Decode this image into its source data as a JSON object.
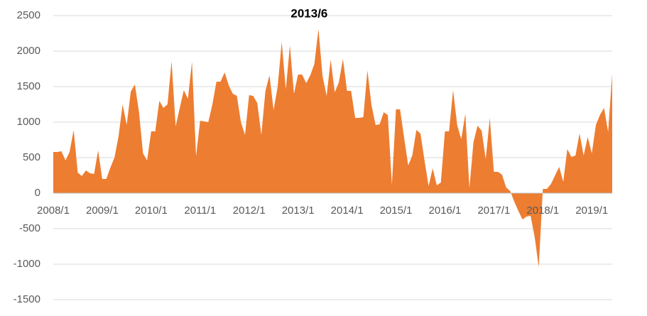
{
  "chart_data": {
    "type": "area",
    "annotation": "2013/6",
    "color": "#ED7D31",
    "grid": true,
    "ylim": [
      -1500,
      2500
    ],
    "yticks": [
      -1500,
      -1000,
      -500,
      0,
      500,
      1000,
      1500,
      2000,
      2500
    ],
    "categories": [
      "2008/1",
      null,
      null,
      null,
      null,
      null,
      null,
      null,
      null,
      null,
      null,
      null,
      "2009/1",
      null,
      null,
      null,
      null,
      null,
      null,
      null,
      null,
      null,
      null,
      null,
      "2010/1",
      null,
      null,
      null,
      null,
      null,
      null,
      null,
      null,
      null,
      null,
      null,
      "2011/1",
      null,
      null,
      null,
      null,
      null,
      null,
      null,
      null,
      null,
      null,
      null,
      "2012/1",
      null,
      null,
      null,
      null,
      null,
      null,
      null,
      null,
      null,
      null,
      null,
      "2013/1",
      null,
      null,
      null,
      null,
      null,
      null,
      null,
      null,
      null,
      null,
      null,
      "2014/1",
      null,
      null,
      null,
      null,
      null,
      null,
      null,
      null,
      null,
      null,
      null,
      "2015/1",
      null,
      null,
      null,
      null,
      null,
      null,
      null,
      null,
      null,
      null,
      null,
      "2016/1",
      null,
      null,
      null,
      null,
      null,
      null,
      null,
      null,
      null,
      null,
      null,
      "2017/1",
      null,
      null,
      null,
      null,
      null,
      null,
      null,
      null,
      null,
      null,
      null,
      "2018/1",
      null,
      null,
      null,
      null,
      null,
      null,
      null,
      null,
      null,
      null,
      null,
      "2019/1",
      null,
      null,
      null,
      null,
      null
    ],
    "values": [
      580,
      580,
      590,
      460,
      580,
      890,
      290,
      240,
      320,
      280,
      270,
      600,
      200,
      200,
      360,
      500,
      800,
      1250,
      960,
      1430,
      1530,
      1150,
      560,
      460,
      870,
      870,
      1300,
      1200,
      1250,
      1860,
      940,
      1200,
      1450,
      1330,
      1850,
      520,
      1020,
      1010,
      1000,
      1250,
      1570,
      1570,
      1700,
      1520,
      1400,
      1370,
      1000,
      820,
      1380,
      1370,
      1270,
      820,
      1440,
      1660,
      1170,
      1500,
      2130,
      1460,
      2080,
      1400,
      1670,
      1670,
      1550,
      1660,
      1820,
      2310,
      1650,
      1370,
      1880,
      1420,
      1560,
      1890,
      1440,
      1440,
      1060,
      1060,
      1070,
      1730,
      1240,
      960,
      970,
      1140,
      1100,
      120,
      1180,
      1180,
      780,
      390,
      530,
      890,
      840,
      460,
      100,
      350,
      110,
      150,
      870,
      870,
      1450,
      960,
      760,
      1120,
      70,
      720,
      950,
      880,
      480,
      1060,
      300,
      300,
      260,
      80,
      30,
      -120,
      -250,
      -370,
      -330,
      -320,
      -620,
      -1040,
      60,
      60,
      130,
      250,
      370,
      160,
      620,
      510,
      530,
      840,
      530,
      790,
      560,
      960,
      1100,
      1200,
      860,
      1680
    ]
  }
}
